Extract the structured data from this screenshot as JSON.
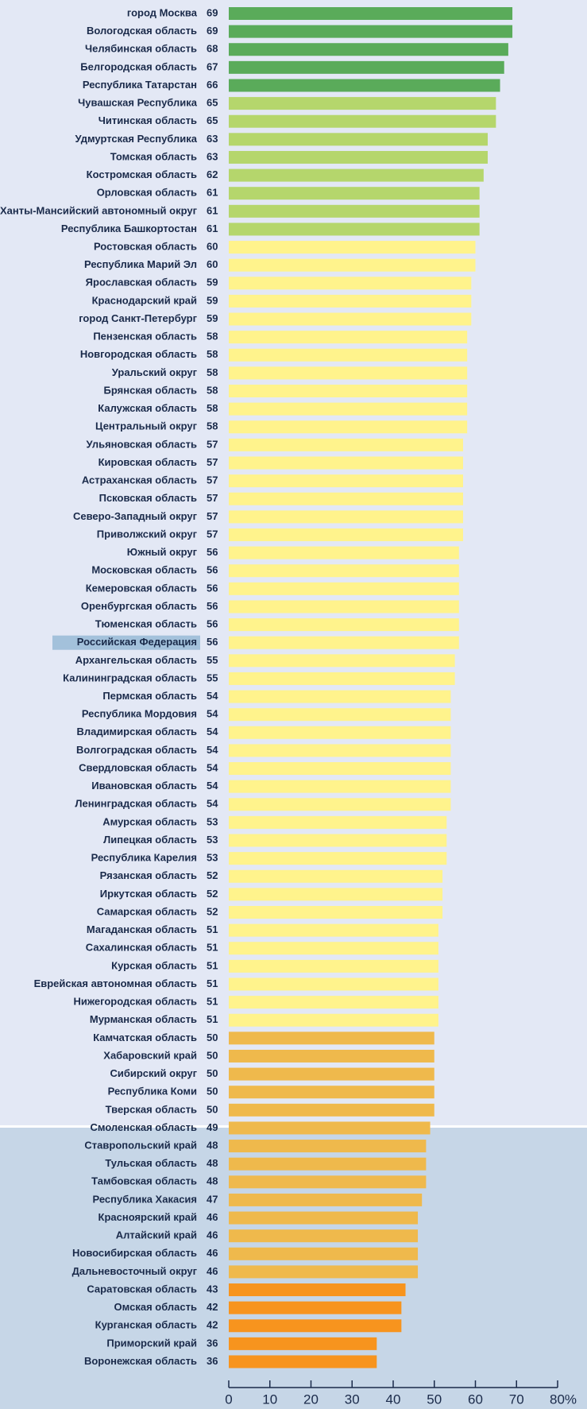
{
  "chart_data": {
    "type": "bar",
    "orientation": "horizontal",
    "categories": [
      "город Москва",
      "Вологодская область",
      "Челябинская область",
      "Белгородская область",
      "Республика Татарстан",
      "Чувашская Республика",
      "Читинская область",
      "Удмуртская Республика",
      "Томская область",
      "Костромская область",
      "Орловская область",
      "Ханты-Мансийский автономный округ",
      "Республика Башкортостан",
      "Ростовская область",
      "Республика Марий Эл",
      "Ярославская область",
      "Краснодарский край",
      "город Санкт-Петербург",
      "Пензенская область",
      "Новгородская область",
      "Уральский округ",
      "Брянская область",
      "Калужская область",
      "Центральный округ",
      "Ульяновская область",
      "Кировская область",
      "Астраханская область",
      "Псковская область",
      "Северо-Западный округ",
      "Приволжский округ",
      "Южный округ",
      "Московская область",
      "Кемеровская область",
      "Оренбургская область",
      "Тюменская область",
      "Российская Федерация",
      "Архангельская область",
      "Калининградская область",
      "Пермская область",
      "Республика Мордовия",
      "Владимирская область",
      "Волгоградская область",
      "Свердловская область",
      "Ивановская область",
      "Ленинградская область",
      "Амурская область",
      "Липецкая область",
      "Республика Карелия",
      "Рязанская область",
      "Иркутская область",
      "Самарская область",
      "Магаданская область",
      "Сахалинская область",
      "Курская область",
      "Еврейская автономная область",
      "Нижегородская область",
      "Мурманская область",
      "Камчатская область",
      "Хабаровский край",
      "Сибирский округ",
      "Республика Коми",
      "Тверская область",
      "Смоленская область",
      "Ставропольский край",
      "Тульская область",
      "Тамбовская область",
      "Республика Хакасия",
      "Красноярский край",
      "Алтайский край",
      "Новосибирская область",
      "Дальневосточный округ",
      "Саратовская область",
      "Омская область",
      "Курганская область",
      "Приморский край",
      "Воронежская область"
    ],
    "values": [
      69,
      69,
      68,
      67,
      66,
      65,
      65,
      63,
      63,
      62,
      61,
      61,
      61,
      60,
      60,
      59,
      59,
      59,
      58,
      58,
      58,
      58,
      58,
      58,
      57,
      57,
      57,
      57,
      57,
      57,
      56,
      56,
      56,
      56,
      56,
      56,
      55,
      55,
      54,
      54,
      54,
      54,
      54,
      54,
      54,
      53,
      53,
      53,
      52,
      52,
      52,
      51,
      51,
      51,
      51,
      51,
      51,
      50,
      50,
      50,
      50,
      50,
      49,
      48,
      48,
      48,
      47,
      46,
      46,
      46,
      46,
      43,
      42,
      42,
      36,
      36
    ],
    "colors": [
      "#5aab5a",
      "#5aab5a",
      "#5aab5a",
      "#5aab5a",
      "#5aab5a",
      "#b5d66c",
      "#b5d66c",
      "#b5d66c",
      "#b5d66c",
      "#b5d66c",
      "#b5d66c",
      "#b5d66c",
      "#b5d66c",
      "#fff38c",
      "#fff38c",
      "#fff38c",
      "#fff38c",
      "#fff38c",
      "#fff38c",
      "#fff38c",
      "#fff38c",
      "#fff38c",
      "#fff38c",
      "#fff38c",
      "#fff38c",
      "#fff38c",
      "#fff38c",
      "#fff38c",
      "#fff38c",
      "#fff38c",
      "#fff38c",
      "#fff38c",
      "#fff38c",
      "#fff38c",
      "#fff38c",
      "#fff38c",
      "#fff38c",
      "#fff38c",
      "#fff38c",
      "#fff38c",
      "#fff38c",
      "#fff38c",
      "#fff38c",
      "#fff38c",
      "#fff38c",
      "#fff38c",
      "#fff38c",
      "#fff38c",
      "#fff38c",
      "#fff38c",
      "#fff38c",
      "#fff38c",
      "#fff38c",
      "#fff38c",
      "#fff38c",
      "#fff38c",
      "#fff38c",
      "#efb94c",
      "#efb94c",
      "#efb94c",
      "#efb94c",
      "#efb94c",
      "#efb94c",
      "#efb94c",
      "#efb94c",
      "#efb94c",
      "#efb94c",
      "#efb94c",
      "#efb94c",
      "#efb94c",
      "#efb94c",
      "#f7941e",
      "#f7941e",
      "#f7941e",
      "#f7941e",
      "#f7941e"
    ],
    "highlight": "Российская Федерация",
    "xlim": [
      0,
      80
    ],
    "xticks": [
      0,
      10,
      20,
      30,
      40,
      50,
      60,
      70,
      {
        "value": 80,
        "label": "80%"
      }
    ]
  }
}
